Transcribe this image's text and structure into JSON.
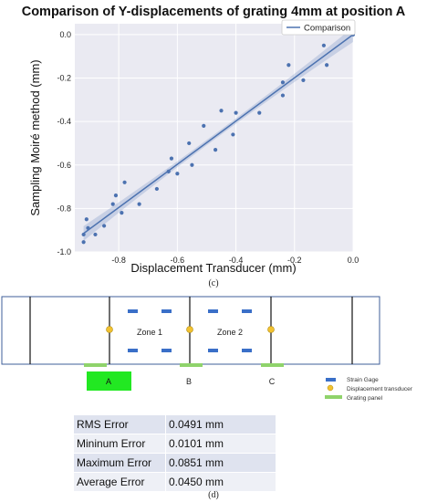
{
  "chart_data": {
    "type": "scatter",
    "title": "Comparison of Y-displacements of grating 4mm at position A",
    "xlabel": "Displacement Transducer (mm)",
    "ylabel": "Sampling Moiré method (mm)",
    "xlim": [
      -0.95,
      0.0
    ],
    "ylim": [
      -1.0,
      0.05
    ],
    "xticks": [
      "-0.8",
      "-0.6",
      "-0.4",
      "-0.2",
      "0.0"
    ],
    "xtick_values": [
      -0.8,
      -0.6,
      -0.4,
      -0.2,
      0.0
    ],
    "yticks": [
      "-1.0",
      "-0.8",
      "-0.6",
      "-0.4",
      "-0.2",
      "0.0"
    ],
    "ytick_values": [
      -1.0,
      -0.8,
      -0.6,
      -0.4,
      -0.2,
      0.0
    ],
    "grid": true,
    "legend_position": "top-right",
    "series": [
      {
        "name": "Comparison",
        "color": "#4c72b0",
        "fit": {
          "x": [
            -0.92,
            0.0
          ],
          "y": [
            -0.915,
            0.0
          ]
        },
        "x": [
          -0.92,
          -0.92,
          -0.91,
          -0.905,
          -0.88,
          -0.85,
          -0.82,
          -0.81,
          -0.79,
          -0.78,
          -0.73,
          -0.67,
          -0.63,
          -0.62,
          -0.6,
          -0.56,
          -0.55,
          -0.51,
          -0.47,
          -0.45,
          -0.41,
          -0.4,
          -0.32,
          -0.24,
          -0.24,
          -0.22,
          -0.17,
          -0.1,
          -0.09,
          0.0
        ],
        "y": [
          -0.955,
          -0.92,
          -0.85,
          -0.89,
          -0.92,
          -0.88,
          -0.78,
          -0.74,
          -0.82,
          -0.68,
          -0.78,
          -0.71,
          -0.63,
          -0.57,
          -0.64,
          -0.5,
          -0.6,
          -0.42,
          -0.53,
          -0.35,
          -0.46,
          -0.36,
          -0.36,
          -0.22,
          -0.28,
          -0.14,
          -0.21,
          -0.05,
          -0.14,
          0.0
        ]
      }
    ]
  },
  "diagram": {
    "zones": [
      "Zone 1",
      "Zone 2"
    ],
    "positions": [
      "A",
      "B",
      "C"
    ],
    "legend": [
      "Strain Gage",
      "Displacement transducer",
      "Grating panel"
    ],
    "colors": {
      "strain_gage": "#3a6fc8",
      "transducer": "#f2c230",
      "grating": "#8fd36b",
      "grating_active": "#22e822"
    }
  },
  "table": {
    "rows": [
      {
        "label": "RMS Error",
        "value": "0.0491 mm"
      },
      {
        "label": "Mininum Error",
        "value": "0.0101 mm"
      },
      {
        "label": "Maximum Error",
        "value": "0.0851 mm"
      },
      {
        "label": "Average Error",
        "value": "0.0450 mm"
      }
    ]
  },
  "captions": {
    "c": "(c)",
    "d": "(d)"
  }
}
